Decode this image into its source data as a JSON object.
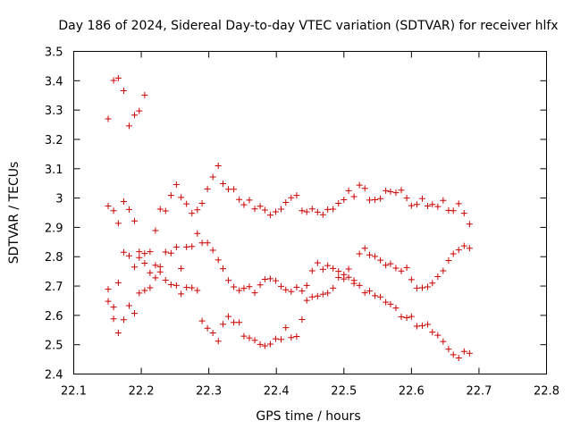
{
  "chart_data": {
    "type": "scatter",
    "title": "Day 186 of 2024, Sidereal Day-to-day VTEC variation (SDTVAR) for receiver hlfx",
    "xlabel": "GPS time / hours",
    "ylabel": "SDTVAR / TECUs",
    "xlim": [
      22.1,
      22.8
    ],
    "ylim": [
      2.4,
      3.5
    ],
    "xticks": [
      22.1,
      22.2,
      22.3,
      22.4,
      22.5,
      22.6,
      22.7,
      22.8
    ],
    "xtick_labels": [
      "22.1",
      "22.2",
      "22.3",
      "22.4",
      "22.5",
      "22.6",
      "22.7",
      "22.8"
    ],
    "yticks": [
      2.4,
      2.5,
      2.6,
      2.7,
      2.8,
      2.9,
      3.0,
      3.1,
      3.2,
      3.3,
      3.4,
      3.5
    ],
    "ytick_labels": [
      "2.4",
      "2.5",
      "2.6",
      "2.7",
      "2.8",
      "2.9",
      "3",
      "3.1",
      "3.2",
      "3.3",
      "3.4",
      "3.5"
    ],
    "marker": "+",
    "color": "#cc0000",
    "series": [
      {
        "name": "series-1",
        "points": [
          [
            22.151,
            3.27
          ],
          [
            22.159,
            3.401
          ],
          [
            22.166,
            3.409
          ],
          [
            22.174,
            3.366
          ],
          [
            22.182,
            3.246
          ],
          [
            22.19,
            3.283
          ],
          [
            22.197,
            3.297
          ],
          [
            22.205,
            3.351
          ],
          [
            22.151,
            2.973
          ],
          [
            22.159,
            2.957
          ],
          [
            22.166,
            2.914
          ],
          [
            22.174,
            2.988
          ],
          [
            22.182,
            2.961
          ],
          [
            22.19,
            2.922
          ],
          [
            22.197,
            2.817
          ],
          [
            22.205,
            2.811
          ],
          [
            22.213,
            2.817
          ],
          [
            22.221,
            2.889
          ],
          [
            22.228,
            2.962
          ],
          [
            22.236,
            2.956
          ],
          [
            22.244,
            3.009
          ],
          [
            22.252,
            3.046
          ],
          [
            22.259,
            3.002
          ],
          [
            22.267,
            2.98
          ],
          [
            22.275,
            2.948
          ],
          [
            22.283,
            2.96
          ],
          [
            22.29,
            2.982
          ],
          [
            22.298,
            3.031
          ],
          [
            22.306,
            3.072
          ],
          [
            22.314,
            3.11
          ],
          [
            22.321,
            3.049
          ],
          [
            22.329,
            3.03
          ],
          [
            22.337,
            3.03
          ],
          [
            22.345,
            2.995
          ],
          [
            22.352,
            2.977
          ],
          [
            22.36,
            2.993
          ],
          [
            22.368,
            2.963
          ],
          [
            22.376,
            2.972
          ],
          [
            22.383,
            2.959
          ],
          [
            22.391,
            2.942
          ],
          [
            22.399,
            2.953
          ],
          [
            22.407,
            2.962
          ],
          [
            22.414,
            2.985
          ],
          [
            22.422,
            3.001
          ],
          [
            22.43,
            3.009
          ],
          [
            22.438,
            2.957
          ],
          [
            22.445,
            2.953
          ],
          [
            22.453,
            2.963
          ],
          [
            22.461,
            2.952
          ],
          [
            22.469,
            2.943
          ],
          [
            22.476,
            2.961
          ],
          [
            22.484,
            2.962
          ],
          [
            22.492,
            2.982
          ],
          [
            22.5,
            2.994
          ],
          [
            22.507,
            3.025
          ],
          [
            22.515,
            3.005
          ],
          [
            22.523,
            3.044
          ],
          [
            22.531,
            3.033
          ],
          [
            22.538,
            2.993
          ],
          [
            22.546,
            2.994
          ],
          [
            22.554,
            2.998
          ],
          [
            22.562,
            3.025
          ],
          [
            22.569,
            3.022
          ],
          [
            22.577,
            3.018
          ],
          [
            22.585,
            3.027
          ],
          [
            22.593,
            3.0
          ],
          [
            22.6,
            2.974
          ],
          [
            22.608,
            2.978
          ],
          [
            22.616,
            2.998
          ],
          [
            22.624,
            2.973
          ],
          [
            22.631,
            2.978
          ],
          [
            22.639,
            2.971
          ],
          [
            22.647,
            2.992
          ],
          [
            22.655,
            2.958
          ],
          [
            22.662,
            2.957
          ],
          [
            22.67,
            2.981
          ],
          [
            22.678,
            2.948
          ],
          [
            22.686,
            2.911
          ]
        ]
      },
      {
        "name": "series-2",
        "points": [
          [
            22.151,
            2.689
          ],
          [
            22.159,
            2.628
          ],
          [
            22.166,
            2.711
          ],
          [
            22.174,
            2.815
          ],
          [
            22.182,
            2.803
          ],
          [
            22.19,
            2.765
          ],
          [
            22.197,
            2.797
          ],
          [
            22.205,
            2.778
          ],
          [
            22.213,
            2.745
          ],
          [
            22.221,
            2.771
          ],
          [
            22.228,
            2.766
          ],
          [
            22.236,
            2.816
          ],
          [
            22.244,
            2.812
          ],
          [
            22.252,
            2.833
          ],
          [
            22.259,
            2.76
          ],
          [
            22.267,
            2.833
          ],
          [
            22.275,
            2.835
          ],
          [
            22.283,
            2.879
          ],
          [
            22.29,
            2.847
          ],
          [
            22.298,
            2.847
          ],
          [
            22.306,
            2.822
          ],
          [
            22.314,
            2.789
          ],
          [
            22.321,
            2.759
          ],
          [
            22.329,
            2.719
          ],
          [
            22.337,
            2.697
          ],
          [
            22.345,
            2.685
          ],
          [
            22.352,
            2.692
          ],
          [
            22.36,
            2.698
          ],
          [
            22.368,
            2.677
          ],
          [
            22.376,
            2.704
          ],
          [
            22.383,
            2.723
          ],
          [
            22.391,
            2.725
          ],
          [
            22.399,
            2.718
          ],
          [
            22.407,
            2.699
          ],
          [
            22.414,
            2.687
          ],
          [
            22.422,
            2.681
          ],
          [
            22.43,
            2.696
          ],
          [
            22.438,
            2.683
          ],
          [
            22.445,
            2.651
          ],
          [
            22.453,
            2.663
          ],
          [
            22.461,
            2.666
          ],
          [
            22.469,
            2.672
          ],
          [
            22.476,
            2.676
          ],
          [
            22.484,
            2.693
          ],
          [
            22.492,
            2.729
          ],
          [
            22.5,
            2.724
          ],
          [
            22.507,
            2.73
          ],
          [
            22.515,
            2.709
          ],
          [
            22.523,
            2.702
          ],
          [
            22.531,
            2.677
          ],
          [
            22.538,
            2.683
          ],
          [
            22.546,
            2.667
          ],
          [
            22.554,
            2.663
          ],
          [
            22.562,
            2.645
          ],
          [
            22.569,
            2.638
          ],
          [
            22.577,
            2.625
          ],
          [
            22.585,
            2.595
          ],
          [
            22.593,
            2.592
          ],
          [
            22.6,
            2.596
          ],
          [
            22.608,
            2.563
          ],
          [
            22.616,
            2.565
          ],
          [
            22.624,
            2.569
          ],
          [
            22.631,
            2.543
          ],
          [
            22.639,
            2.532
          ],
          [
            22.647,
            2.511
          ],
          [
            22.655,
            2.485
          ],
          [
            22.662,
            2.466
          ],
          [
            22.67,
            2.455
          ],
          [
            22.678,
            2.477
          ],
          [
            22.686,
            2.471
          ]
        ]
      },
      {
        "name": "series-3",
        "points": [
          [
            22.151,
            2.648
          ],
          [
            22.159,
            2.588
          ],
          [
            22.166,
            2.54
          ],
          [
            22.174,
            2.585
          ],
          [
            22.182,
            2.633
          ],
          [
            22.19,
            2.607
          ],
          [
            22.197,
            2.676
          ],
          [
            22.205,
            2.685
          ],
          [
            22.213,
            2.694
          ],
          [
            22.221,
            2.728
          ],
          [
            22.228,
            2.748
          ],
          [
            22.236,
            2.72
          ],
          [
            22.244,
            2.705
          ],
          [
            22.252,
            2.702
          ],
          [
            22.259,
            2.673
          ],
          [
            22.267,
            2.695
          ],
          [
            22.275,
            2.694
          ],
          [
            22.283,
            2.685
          ],
          [
            22.29,
            2.581
          ],
          [
            22.298,
            2.556
          ],
          [
            22.306,
            2.54
          ],
          [
            22.314,
            2.512
          ],
          [
            22.321,
            2.57
          ],
          [
            22.329,
            2.596
          ],
          [
            22.337,
            2.576
          ],
          [
            22.345,
            2.576
          ],
          [
            22.352,
            2.529
          ],
          [
            22.36,
            2.523
          ],
          [
            22.368,
            2.515
          ],
          [
            22.376,
            2.501
          ],
          [
            22.383,
            2.496
          ],
          [
            22.391,
            2.502
          ],
          [
            22.399,
            2.52
          ],
          [
            22.407,
            2.518
          ],
          [
            22.414,
            2.558
          ],
          [
            22.422,
            2.524
          ],
          [
            22.43,
            2.528
          ],
          [
            22.438,
            2.586
          ],
          [
            22.445,
            2.702
          ],
          [
            22.453,
            2.752
          ],
          [
            22.461,
            2.779
          ],
          [
            22.469,
            2.757
          ],
          [
            22.476,
            2.77
          ],
          [
            22.484,
            2.76
          ],
          [
            22.492,
            2.75
          ],
          [
            22.5,
            2.739
          ],
          [
            22.507,
            2.758
          ],
          [
            22.515,
            2.719
          ],
          [
            22.523,
            2.81
          ],
          [
            22.531,
            2.829
          ],
          [
            22.538,
            2.806
          ],
          [
            22.546,
            2.801
          ],
          [
            22.554,
            2.788
          ],
          [
            22.562,
            2.771
          ],
          [
            22.569,
            2.776
          ],
          [
            22.577,
            2.761
          ],
          [
            22.585,
            2.751
          ],
          [
            22.593,
            2.763
          ],
          [
            22.6,
            2.722
          ],
          [
            22.608,
            2.693
          ],
          [
            22.616,
            2.694
          ],
          [
            22.624,
            2.697
          ],
          [
            22.631,
            2.71
          ],
          [
            22.639,
            2.732
          ],
          [
            22.647,
            2.752
          ],
          [
            22.655,
            2.787
          ],
          [
            22.662,
            2.81
          ],
          [
            22.67,
            2.823
          ],
          [
            22.678,
            2.837
          ],
          [
            22.686,
            2.829
          ]
        ]
      }
    ]
  }
}
